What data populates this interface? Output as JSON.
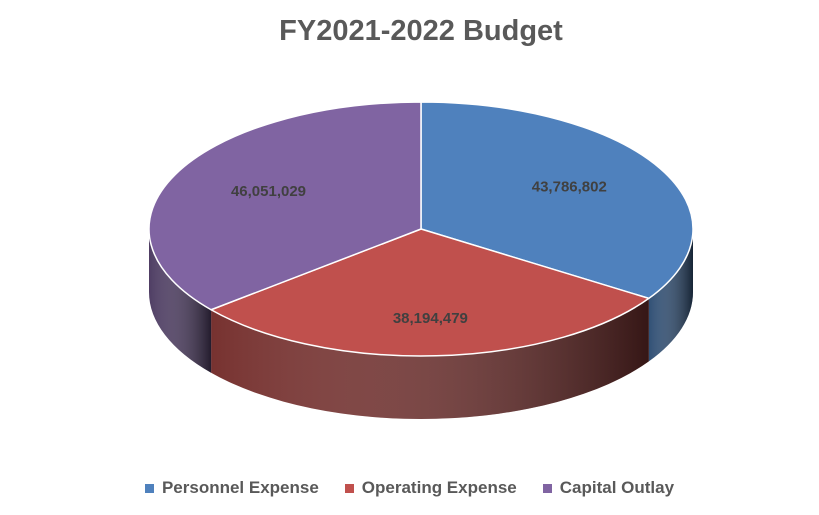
{
  "chart_data": {
    "type": "pie",
    "title": "FY2021-2022 Budget",
    "style": "3d",
    "legend_position": "bottom",
    "slices": [
      {
        "name": "Personnel Expense",
        "value": 43786802,
        "label": "43,786,802",
        "color": "#4F81BD"
      },
      {
        "name": "Operating Expense",
        "value": 38194479,
        "label": "38,194,479",
        "color": "#C0504D"
      },
      {
        "name": "Capital Outlay",
        "value": 46051029,
        "label": "46,051,029",
        "color": "#8064A2"
      }
    ]
  }
}
